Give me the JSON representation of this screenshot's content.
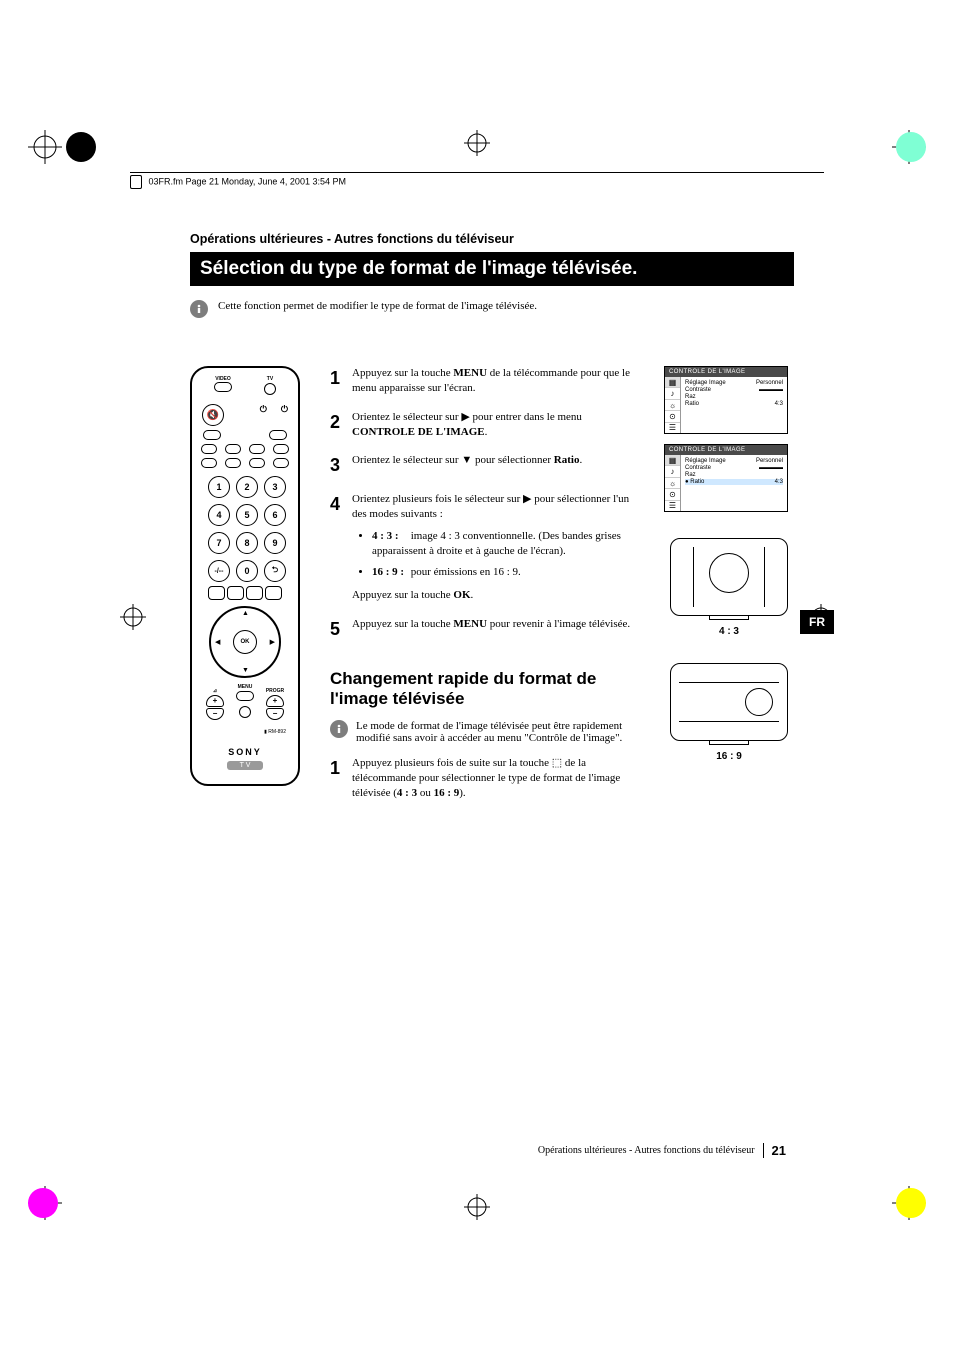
{
  "meta": {
    "header_text": "03FR.fm  Page 21  Monday, June 4, 2001  3:54 PM",
    "language_tab": "FR",
    "footer_text": "Opérations ultérieures - Autres fonctions du téléviseur",
    "page_number": "21"
  },
  "colors": {
    "title_bg": "#000000",
    "title_fg": "#ffffff",
    "osd_header_bg": "#4a4a4a",
    "info_icon_bg": "#7d7d7d",
    "corner_tr": "#7fffd4",
    "corner_bl": "#ff00ff",
    "corner_br": "#ffff00"
  },
  "heading": {
    "overline": "Opérations ultérieures - Autres fonctions du téléviseur",
    "title": "Sélection du type de format de l'image télévisée."
  },
  "intro": "Cette fonction permet de modifier le type de format de l'image télévisée.",
  "remote": {
    "top_labels": {
      "video": "VIDEO",
      "tv": "TV"
    },
    "mute_glyph": "🔇",
    "power_glyph": "⏻",
    "numpad": [
      "1",
      "2",
      "3",
      "4",
      "5",
      "6",
      "7",
      "8",
      "9",
      "0"
    ],
    "ok": "OK",
    "vol_label": "⊿",
    "menu_label": "MENU",
    "progr_label": "PROGR",
    "model": "RM-892",
    "brand": "SONY",
    "badge": "T V"
  },
  "steps": [
    {
      "n": "1",
      "html": "Appuyez sur la touche <b>MENU</b> de la télécommande pour que le menu apparaisse sur l'écran."
    },
    {
      "n": "2",
      "html": "Orientez le sélecteur sur  ▶ pour entrer dans le menu <b>CONTROLE DE L'IMAGE</b>."
    },
    {
      "n": "3",
      "html": "Orientez  le sélecteur sur ▼ pour sélectionner <b>Ratio</b>."
    },
    {
      "n": "4",
      "html": "Orientez plusieurs fois le sélecteur sur ▶ pour sélectionner l'un des modes suivants :",
      "options": [
        {
          "label": "4 : 3 :",
          "text": "image 4 : 3 conventionnelle. (Des bandes grises apparaissent à droite et à gauche de l'écran)."
        },
        {
          "label": "16 : 9 :",
          "text": "pour émissions en 16 : 9."
        }
      ],
      "tail": "Appuyez sur la touche <b>OK</b>."
    },
    {
      "n": "5",
      "html": "Appuyez sur la touche <b>MENU</b> pour revenir à l'image télévisée."
    }
  ],
  "osd": {
    "title": "CONTROLE  DE  L'IMAGE",
    "rows1": [
      {
        "label": "Réglage Image",
        "value": "Personnel"
      },
      {
        "label": "Contraste",
        "value": "▬▬▬▬"
      },
      {
        "label": "Raz",
        "value": ""
      },
      {
        "label": "Ratio",
        "value": "4:3"
      }
    ],
    "rows2": [
      {
        "label": "Réglage Image",
        "value": "Personnel"
      },
      {
        "label": "Contraste",
        "value": "▬▬▬▬"
      },
      {
        "label": "Raz",
        "value": ""
      },
      {
        "label": "Ratio",
        "value": "4:3",
        "selected": true
      }
    ]
  },
  "tv_illus": {
    "cap_43": "4 : 3",
    "cap_169": "16 : 9"
  },
  "subsection": {
    "title": "Changement rapide du format de l'image télévisée",
    "note": "Le mode de format de l'image télévisée peut être rapidement modifié sans avoir à accéder au menu \"Contrôle de l'image\".",
    "step_n": "1",
    "step_html": "Appuyez plusieurs fois de suite sur la touche  ⬚  de  la télécommande pour sélectionner le type de format de l'image télévisée (<b>4 : 3</b> ou <b>16 : 9</b>)."
  }
}
